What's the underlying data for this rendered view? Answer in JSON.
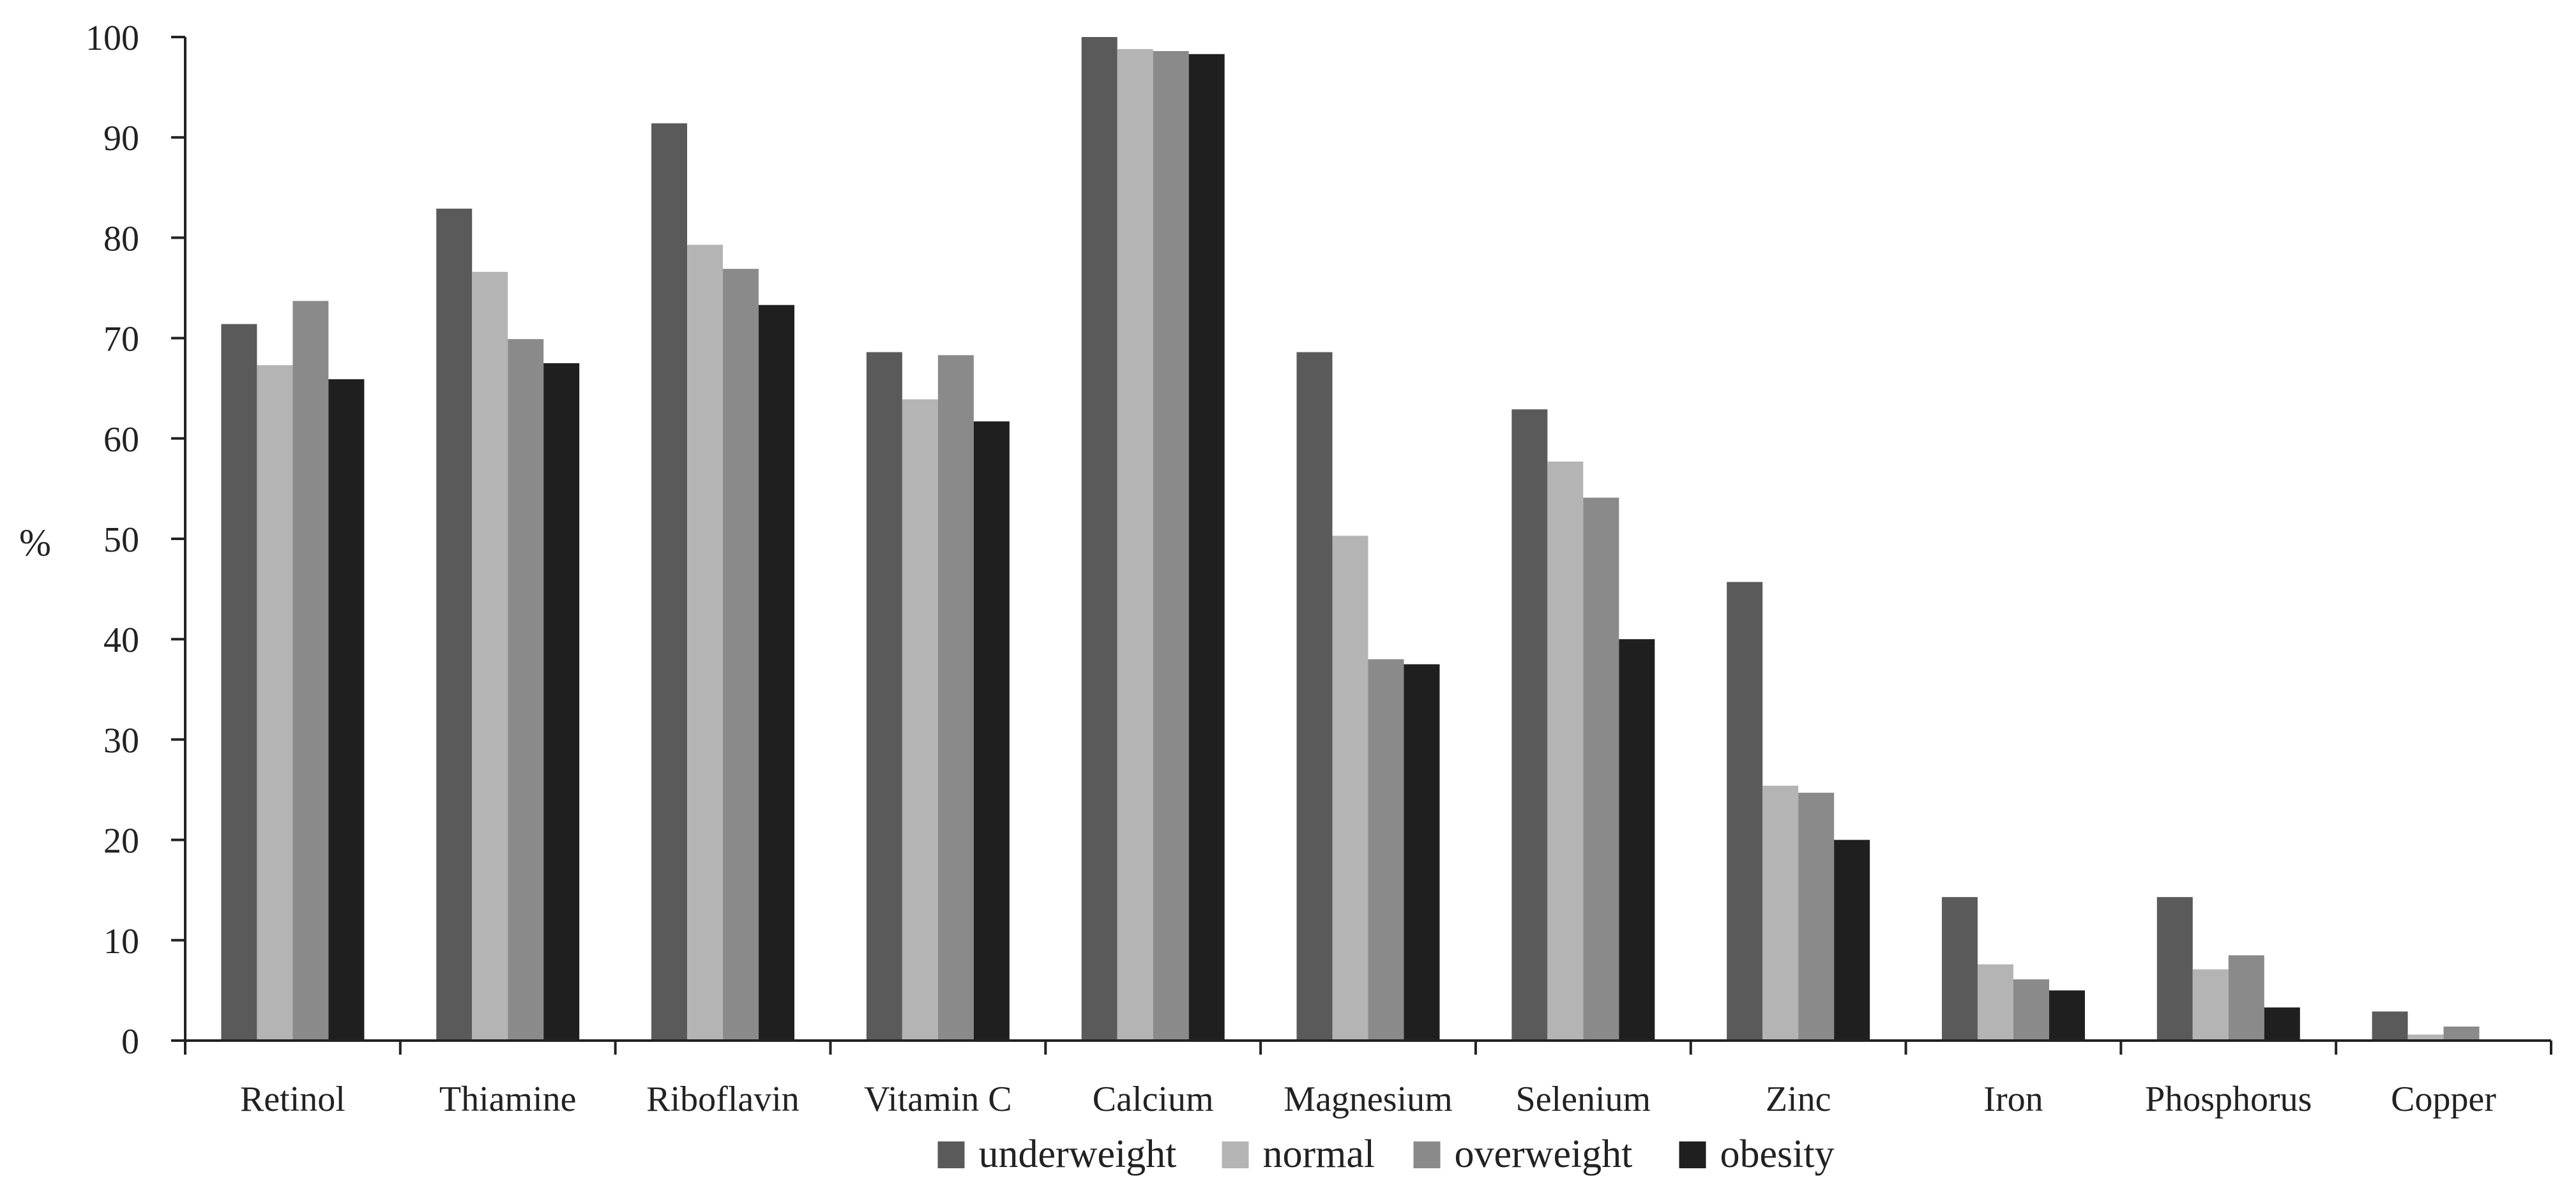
{
  "chart_data": {
    "type": "bar",
    "title": "",
    "xlabel": "",
    "ylabel": "%",
    "ylim": [
      0,
      100
    ],
    "yticks": [
      0,
      10,
      20,
      30,
      40,
      50,
      60,
      70,
      80,
      90,
      100
    ],
    "grid": false,
    "legend_position": "bottom",
    "categories": [
      "Retinol",
      "Thiamine",
      "Riboflavin",
      "Vitamin C",
      "Calcium",
      "Magnesium",
      "Selenium",
      "Zinc",
      "Iron",
      "Phosphorus",
      "Copper"
    ],
    "series": [
      {
        "name": "underweight",
        "color": "#5a5a5a",
        "values": [
          71.4,
          82.9,
          91.4,
          68.6,
          100,
          68.6,
          62.9,
          45.7,
          14.3,
          14.3,
          2.9
        ]
      },
      {
        "name": "normal",
        "color": "#b4b4b4",
        "values": [
          67.3,
          76.6,
          79.3,
          63.9,
          98.8,
          50.3,
          57.7,
          25.4,
          7.6,
          7.1,
          0.6
        ]
      },
      {
        "name": "overweight",
        "color": "#8a8a8a",
        "values": [
          73.7,
          69.9,
          76.9,
          68.3,
          98.6,
          38.0,
          54.1,
          24.7,
          6.1,
          8.5,
          1.4
        ]
      },
      {
        "name": "obesity",
        "color": "#1f1f1f",
        "values": [
          65.9,
          67.5,
          73.3,
          61.7,
          98.3,
          37.5,
          40.0,
          20.0,
          5.0,
          3.3,
          0.0
        ]
      }
    ]
  }
}
